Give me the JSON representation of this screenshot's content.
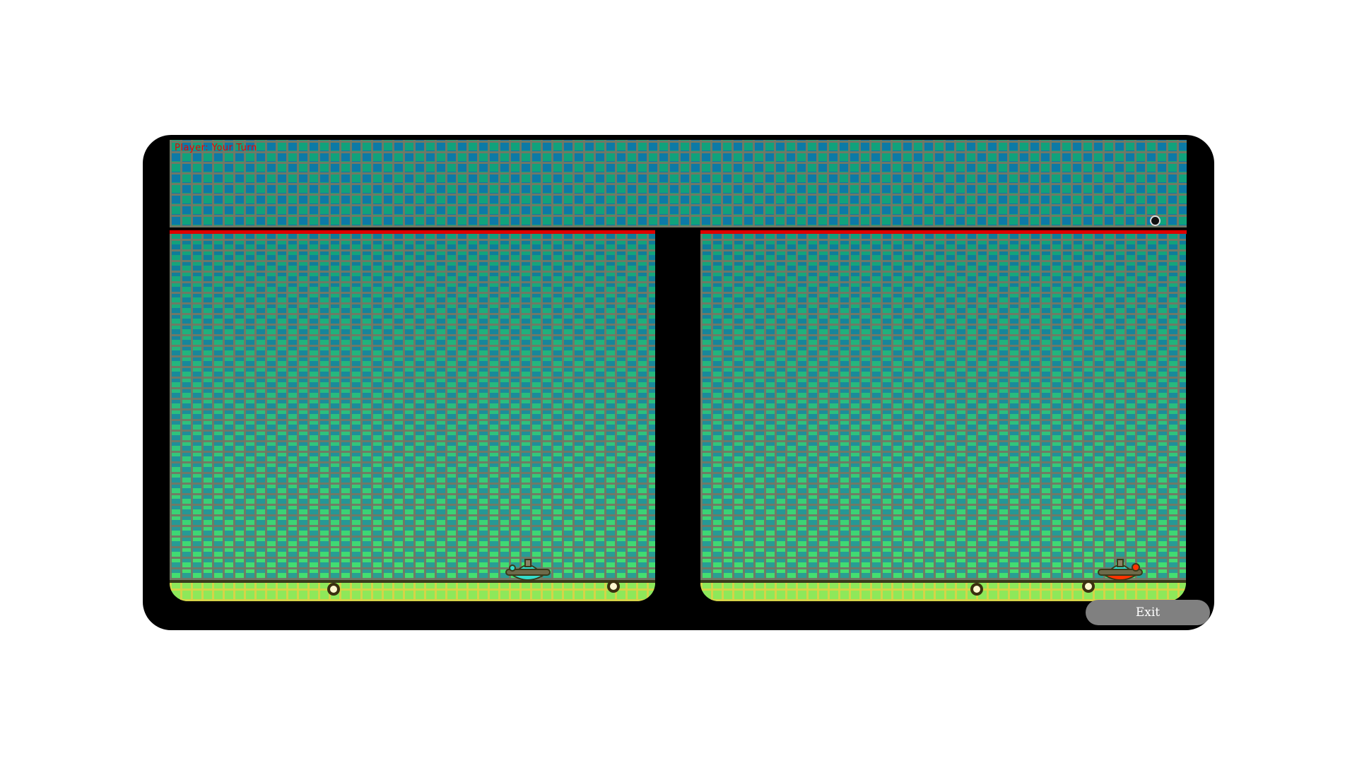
{
  "hud": {
    "status": "Player: Your Turn"
  },
  "controls": {
    "exit_label": "Exit"
  },
  "colors": {
    "frame": "#000000",
    "divider": "#dd0000",
    "player_ship": "#33dccc",
    "enemy_ship": "#ff3300",
    "button": "#808080"
  }
}
